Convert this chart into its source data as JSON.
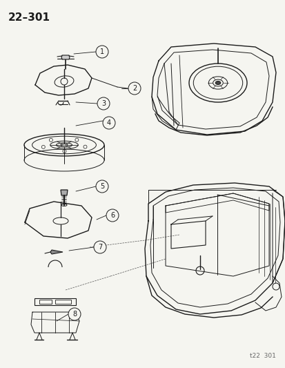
{
  "title": "22–301",
  "footer": "t22  301",
  "bg_color": "#f5f5f0",
  "line_color": "#1a1a1a",
  "title_fontsize": 11,
  "footer_fontsize": 6.5,
  "callout_fontsize": 7,
  "callout_r": 0.018
}
